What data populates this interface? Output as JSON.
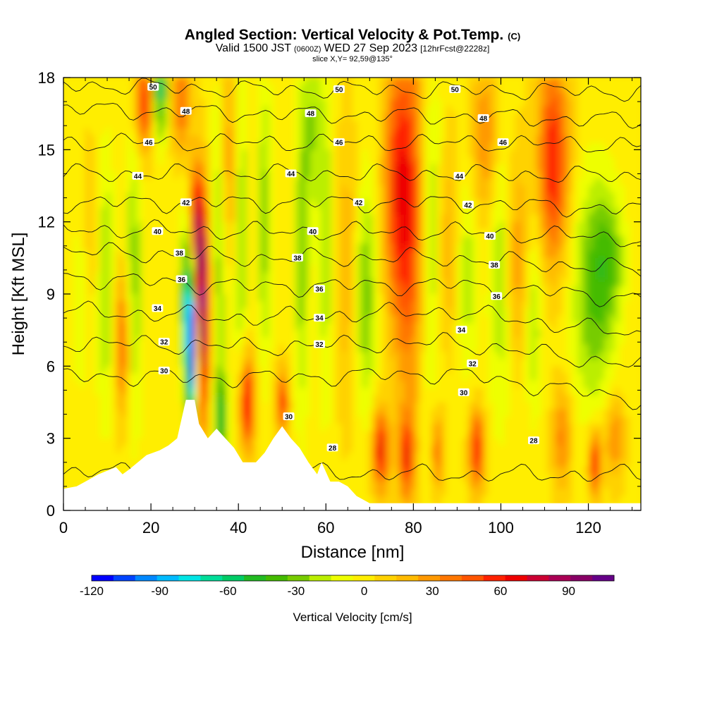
{
  "chart_data": {
    "type": "heatmap",
    "title": "Angled Section: Vertical Velocity & Pot.Temp.",
    "title_unit": "(C)",
    "subtitle": {
      "valid": "Valid 1500 JST",
      "utc": "(0600Z)",
      "date": "WED 27 Sep 2023",
      "run": "[12hrFcst@2228z]"
    },
    "slice_label": "slice X,Y= 92,59@135°",
    "xlabel": "Distance [nm]",
    "ylabel": "Height [Kft MSL]",
    "xlim": [
      0,
      132
    ],
    "ylim": [
      0,
      18
    ],
    "x_ticks": [
      "0",
      "20",
      "40",
      "60",
      "80",
      "100",
      "120"
    ],
    "y_ticks": [
      "0",
      "3",
      "6",
      "9",
      "12",
      "15",
      "18"
    ],
    "colorbar": {
      "label": "Vertical Velocity [cm/s]",
      "ticks": [
        "-120",
        "-90",
        "-60",
        "-30",
        "0",
        "30",
        "60",
        "90"
      ],
      "range": [
        -120,
        110
      ],
      "colors": [
        "#0000ff",
        "#0044ff",
        "#0088ff",
        "#00bbff",
        "#00e5e5",
        "#00dd99",
        "#00cc66",
        "#22bb22",
        "#44bb00",
        "#77cc00",
        "#bbee00",
        "#eeff00",
        "#ffee00",
        "#ffd200",
        "#ffbb00",
        "#ff9900",
        "#ff7700",
        "#ff5500",
        "#ff2200",
        "#ee0000",
        "#cc0033",
        "#aa0055",
        "#880066",
        "#660088"
      ]
    },
    "contour_field": "potential temperature (C)",
    "contours": [
      {
        "level": 28,
        "heights": [
          1.6,
          1.6,
          1.5,
          1.5
        ]
      },
      {
        "level": 30,
        "heights": [
          5.6,
          5.5,
          5.7,
          4.6
        ]
      },
      {
        "level": 32,
        "heights": [
          7.0,
          6.8,
          7.0,
          6.0
        ]
      },
      {
        "level": 34,
        "heights": [
          8.3,
          8.0,
          8.3,
          7.3
        ]
      },
      {
        "level": 36,
        "heights": [
          9.7,
          9.3,
          9.4,
          8.8
        ]
      },
      {
        "level": 38,
        "heights": [
          10.8,
          10.5,
          10.5,
          10.0
        ]
      },
      {
        "level": 40,
        "heights": [
          11.7,
          11.6,
          11.6,
          11.3
        ]
      },
      {
        "level": 42,
        "heights": [
          12.8,
          12.8,
          12.8,
          12.5
        ]
      },
      {
        "level": 44,
        "heights": [
          14.0,
          14.0,
          14.0,
          13.9
        ]
      },
      {
        "level": 46,
        "heights": [
          15.3,
          15.3,
          15.3,
          15.2
        ]
      },
      {
        "level": 48,
        "heights": [
          16.7,
          16.5,
          16.4,
          16.2
        ]
      },
      {
        "level": 50,
        "heights": [
          17.7,
          17.5,
          17.5,
          17.4
        ]
      }
    ],
    "contour_labels": [
      {
        "text": "50",
        "x": 20.5,
        "y": 17.6
      },
      {
        "text": "48",
        "x": 28.0,
        "y": 16.6
      },
      {
        "text": "46",
        "x": 19.5,
        "y": 15.3
      },
      {
        "text": "44",
        "x": 17.0,
        "y": 13.9
      },
      {
        "text": "42",
        "x": 28.0,
        "y": 12.8
      },
      {
        "text": "40",
        "x": 21.5,
        "y": 11.6
      },
      {
        "text": "38",
        "x": 26.5,
        "y": 10.7
      },
      {
        "text": "36",
        "x": 27.0,
        "y": 9.6
      },
      {
        "text": "34",
        "x": 21.5,
        "y": 8.4
      },
      {
        "text": "32",
        "x": 23.0,
        "y": 7.0
      },
      {
        "text": "30",
        "x": 23.0,
        "y": 5.8
      },
      {
        "text": "50",
        "x": 63.0,
        "y": 17.5
      },
      {
        "text": "48",
        "x": 56.5,
        "y": 16.5
      },
      {
        "text": "46",
        "x": 63.0,
        "y": 15.3
      },
      {
        "text": "44",
        "x": 52.0,
        "y": 14.0
      },
      {
        "text": "42",
        "x": 67.5,
        "y": 12.8
      },
      {
        "text": "40",
        "x": 57.0,
        "y": 11.6
      },
      {
        "text": "38",
        "x": 53.5,
        "y": 10.5
      },
      {
        "text": "36",
        "x": 58.5,
        "y": 9.2
      },
      {
        "text": "34",
        "x": 58.5,
        "y": 8.0
      },
      {
        "text": "32",
        "x": 58.5,
        "y": 6.9
      },
      {
        "text": "30",
        "x": 51.5,
        "y": 3.9
      },
      {
        "text": "28",
        "x": 61.5,
        "y": 2.6
      },
      {
        "text": "50",
        "x": 89.5,
        "y": 17.5
      },
      {
        "text": "48",
        "x": 96.0,
        "y": 16.3
      },
      {
        "text": "46",
        "x": 100.5,
        "y": 15.3
      },
      {
        "text": "44",
        "x": 90.5,
        "y": 13.9
      },
      {
        "text": "42",
        "x": 92.5,
        "y": 12.7
      },
      {
        "text": "40",
        "x": 97.5,
        "y": 11.4
      },
      {
        "text": "38",
        "x": 98.5,
        "y": 10.2
      },
      {
        "text": "36",
        "x": 99.0,
        "y": 8.9
      },
      {
        "text": "34",
        "x": 91.0,
        "y": 7.5
      },
      {
        "text": "32",
        "x": 93.5,
        "y": 6.1
      },
      {
        "text": "30",
        "x": 91.5,
        "y": 4.9
      },
      {
        "text": "28",
        "x": 107.5,
        "y": 2.9
      }
    ],
    "updrafts": [
      {
        "x": 31.5,
        "y": 8.5,
        "sx": 1.3,
        "sy": 3.2,
        "v": 105
      },
      {
        "x": 30.0,
        "y": 12.0,
        "sx": 1.1,
        "sy": 1.6,
        "v": 55
      },
      {
        "x": 42.0,
        "y": 4.5,
        "sx": 1.2,
        "sy": 1.4,
        "v": 70
      },
      {
        "x": 50.0,
        "y": 4.5,
        "sx": 1.0,
        "sy": 1.0,
        "v": 55
      },
      {
        "x": 13.5,
        "y": 7.0,
        "sx": 1.3,
        "sy": 2.2,
        "v": 45
      },
      {
        "x": 18.5,
        "y": 17.0,
        "sx": 1.5,
        "sy": 1.5,
        "v": 55
      },
      {
        "x": 27.0,
        "y": 17.0,
        "sx": 1.5,
        "sy": 1.5,
        "v": 40
      },
      {
        "x": 38.0,
        "y": 14.5,
        "sx": 1.5,
        "sy": 3.0,
        "v": 30
      },
      {
        "x": 79.0,
        "y": 12.5,
        "sx": 2.5,
        "sy": 5.5,
        "v": 55
      },
      {
        "x": 75.5,
        "y": 13.5,
        "sx": 2.0,
        "sy": 3.5,
        "v": 35
      },
      {
        "x": 97.0,
        "y": 15.5,
        "sx": 2.5,
        "sy": 2.5,
        "v": 35
      },
      {
        "x": 112.0,
        "y": 14.5,
        "sx": 2.5,
        "sy": 3.0,
        "v": 60
      },
      {
        "x": 72.5,
        "y": 2.5,
        "sx": 1.3,
        "sy": 1.2,
        "v": 65
      },
      {
        "x": 78.5,
        "y": 2.2,
        "sx": 1.2,
        "sy": 1.2,
        "v": 55
      },
      {
        "x": 85.5,
        "y": 2.5,
        "sx": 1.0,
        "sy": 1.2,
        "v": 40
      },
      {
        "x": 94.5,
        "y": 2.5,
        "sx": 1.2,
        "sy": 1.2,
        "v": 60
      },
      {
        "x": 114.0,
        "y": 3.0,
        "sx": 1.5,
        "sy": 1.5,
        "v": 35
      },
      {
        "x": 121.5,
        "y": 2.0,
        "sx": 1.0,
        "sy": 1.0,
        "v": 60
      },
      {
        "x": 126.0,
        "y": 3.0,
        "sx": 1.5,
        "sy": 1.2,
        "v": 35
      },
      {
        "x": 88.0,
        "y": 11.0,
        "sx": 2.0,
        "sy": 3.0,
        "v": 25
      },
      {
        "x": 103.5,
        "y": 10.5,
        "sx": 2.0,
        "sy": 3.0,
        "v": 30
      },
      {
        "x": 65.0,
        "y": 10.0,
        "sx": 2.0,
        "sy": 4.0,
        "v": 20
      },
      {
        "x": 6.0,
        "y": 11.0,
        "sx": 2.0,
        "sy": 3.0,
        "v": 15
      }
    ],
    "downdrafts": [
      {
        "x": 29.5,
        "y": 6.6,
        "sx": 0.9,
        "sy": 2.0,
        "v": -120
      },
      {
        "x": 28.5,
        "y": 9.0,
        "sx": 1.2,
        "sy": 2.5,
        "v": -60
      },
      {
        "x": 22.0,
        "y": 17.5,
        "sx": 1.2,
        "sy": 1.5,
        "v": -60
      },
      {
        "x": 9.5,
        "y": 9.5,
        "sx": 1.5,
        "sy": 4.0,
        "v": -30
      },
      {
        "x": 16.0,
        "y": 9.5,
        "sx": 1.5,
        "sy": 4.5,
        "v": -30
      },
      {
        "x": 36.0,
        "y": 3.8,
        "sx": 1.0,
        "sy": 1.2,
        "v": -50
      },
      {
        "x": 35.5,
        "y": 10.5,
        "sx": 1.3,
        "sy": 5.0,
        "v": -30
      },
      {
        "x": 40.5,
        "y": 12.0,
        "sx": 1.2,
        "sy": 5.0,
        "v": -30
      },
      {
        "x": 46.0,
        "y": 12.0,
        "sx": 1.2,
        "sy": 4.5,
        "v": -30
      },
      {
        "x": 54.5,
        "y": 10.5,
        "sx": 1.2,
        "sy": 5.0,
        "v": -30
      },
      {
        "x": 60.0,
        "y": 11.0,
        "sx": 1.3,
        "sy": 5.0,
        "v": -25
      },
      {
        "x": 69.0,
        "y": 9.0,
        "sx": 1.8,
        "sy": 3.5,
        "v": -35
      },
      {
        "x": 84.0,
        "y": 11.5,
        "sx": 1.8,
        "sy": 5.0,
        "v": -30
      },
      {
        "x": 92.0,
        "y": 10.0,
        "sx": 2.0,
        "sy": 3.0,
        "v": -25
      },
      {
        "x": 100.0,
        "y": 11.0,
        "sx": 2.0,
        "sy": 5.0,
        "v": -30
      },
      {
        "x": 107.5,
        "y": 8.0,
        "sx": 1.5,
        "sy": 3.0,
        "v": -25
      },
      {
        "x": 121.0,
        "y": 9.0,
        "sx": 3.5,
        "sy": 3.5,
        "v": -35
      },
      {
        "x": 125.0,
        "y": 10.5,
        "sx": 2.5,
        "sy": 2.0,
        "v": -25
      },
      {
        "x": 57.0,
        "y": 16.0,
        "sx": 1.5,
        "sy": 2.5,
        "v": -25
      },
      {
        "x": 4.0,
        "y": 9.0,
        "sx": 1.5,
        "sy": 3.0,
        "v": -20
      }
    ],
    "terrain": [
      [
        0,
        0.9
      ],
      [
        3,
        1.0
      ],
      [
        5,
        1.2
      ],
      [
        8,
        1.5
      ],
      [
        12,
        1.8
      ],
      [
        13.5,
        1.5
      ],
      [
        15,
        1.7
      ],
      [
        17,
        2.0
      ],
      [
        19,
        2.3
      ],
      [
        22,
        2.5
      ],
      [
        24,
        2.7
      ],
      [
        26,
        3.0
      ],
      [
        28,
        4.6
      ],
      [
        30,
        4.6
      ],
      [
        31,
        3.6
      ],
      [
        33,
        3.0
      ],
      [
        35,
        3.4
      ],
      [
        37,
        3.0
      ],
      [
        39,
        2.6
      ],
      [
        41,
        2.0
      ],
      [
        44,
        2.0
      ],
      [
        46,
        2.4
      ],
      [
        48,
        3.0
      ],
      [
        50,
        3.5
      ],
      [
        52,
        3.0
      ],
      [
        54,
        2.6
      ],
      [
        56,
        2.0
      ],
      [
        58,
        1.5
      ],
      [
        59,
        2.0
      ],
      [
        61,
        1.2
      ],
      [
        63,
        1.2
      ],
      [
        65,
        1.0
      ],
      [
        67,
        0.6
      ],
      [
        70,
        0.3
      ],
      [
        132,
        0.3
      ]
    ]
  }
}
